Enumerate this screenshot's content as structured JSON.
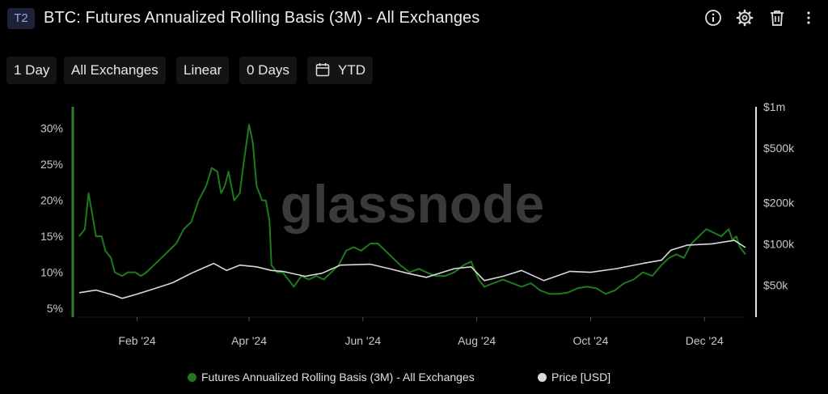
{
  "header": {
    "badge": "T2",
    "title": "BTC: Futures Annualized Rolling Basis (3M) - All Exchanges",
    "icons": [
      "info-icon",
      "gear-icon",
      "trash-icon",
      "more-vertical-icon"
    ]
  },
  "toolbar": {
    "resolution": "1 Day",
    "exchange": "All Exchanges",
    "scale": "Linear",
    "sma": "0 Days",
    "range": "YTD",
    "range_icon": "calendar-icon"
  },
  "watermark": "glassnode",
  "colors": {
    "background": "#000000",
    "basis": "#1e7a1e",
    "price": "#d9d9d9",
    "axis": "#e6e6e6"
  },
  "legend": {
    "basis": "Futures Annualized Rolling Basis (3M) - All Exchanges",
    "price": "Price [USD]"
  },
  "chart_data": {
    "type": "line",
    "x_ticks": [
      {
        "date": "2024-02-01",
        "label": "Feb '24"
      },
      {
        "date": "2024-04-01",
        "label": "Apr '24"
      },
      {
        "date": "2024-06-01",
        "label": "Jun '24"
      },
      {
        "date": "2024-08-01",
        "label": "Aug '24"
      },
      {
        "date": "2024-10-01",
        "label": "Oct '24"
      },
      {
        "date": "2024-12-01",
        "label": "Dec '24"
      }
    ],
    "x_range": [
      "2024-01-01",
      "2024-12-23"
    ],
    "y_left": {
      "ticks": [
        {
          "v": 0.3,
          "label": "30%"
        },
        {
          "v": 0.25,
          "label": "25%"
        },
        {
          "v": 0.2,
          "label": "20%"
        },
        {
          "v": 0.15,
          "label": "15%"
        },
        {
          "v": 0.1,
          "label": "10%"
        },
        {
          "v": 0.05,
          "label": "5%"
        }
      ],
      "range": [
        0.04,
        0.33
      ]
    },
    "y_right": {
      "scale": "log",
      "ticks": [
        {
          "v": 1000000,
          "label": "$1m"
        },
        {
          "v": 500000,
          "label": "$500k"
        },
        {
          "v": 200000,
          "label": "$200k"
        },
        {
          "v": 100000,
          "label": "$100k"
        },
        {
          "v": 50000,
          "label": "$50k"
        }
      ],
      "range": [
        30000,
        1000000
      ]
    },
    "series": [
      {
        "name": "Futures Annualized Rolling Basis (3M) - All Exchanges",
        "axis": "left",
        "points": [
          [
            "2024-01-01",
            0.15
          ],
          [
            "2024-01-04",
            0.16
          ],
          [
            "2024-01-06",
            0.21
          ],
          [
            "2024-01-08",
            0.18
          ],
          [
            "2024-01-10",
            0.15
          ],
          [
            "2024-01-13",
            0.15
          ],
          [
            "2024-01-15",
            0.13
          ],
          [
            "2024-01-18",
            0.12
          ],
          [
            "2024-01-20",
            0.1
          ],
          [
            "2024-01-24",
            0.095
          ],
          [
            "2024-01-27",
            0.1
          ],
          [
            "2024-01-31",
            0.1
          ],
          [
            "2024-02-03",
            0.095
          ],
          [
            "2024-02-06",
            0.1
          ],
          [
            "2024-02-10",
            0.11
          ],
          [
            "2024-02-14",
            0.12
          ],
          [
            "2024-02-18",
            0.13
          ],
          [
            "2024-02-22",
            0.14
          ],
          [
            "2024-02-26",
            0.16
          ],
          [
            "2024-03-01",
            0.17
          ],
          [
            "2024-03-05",
            0.2
          ],
          [
            "2024-03-09",
            0.22
          ],
          [
            "2024-03-12",
            0.245
          ],
          [
            "2024-03-15",
            0.24
          ],
          [
            "2024-03-17",
            0.21
          ],
          [
            "2024-03-19",
            0.22
          ],
          [
            "2024-03-21",
            0.24
          ],
          [
            "2024-03-24",
            0.2
          ],
          [
            "2024-03-27",
            0.21
          ],
          [
            "2024-03-29",
            0.25
          ],
          [
            "2024-04-01",
            0.305
          ],
          [
            "2024-04-03",
            0.28
          ],
          [
            "2024-04-05",
            0.22
          ],
          [
            "2024-04-08",
            0.2
          ],
          [
            "2024-04-10",
            0.2
          ],
          [
            "2024-04-12",
            0.17
          ],
          [
            "2024-04-13",
            0.11
          ],
          [
            "2024-04-16",
            0.1
          ],
          [
            "2024-04-19",
            0.1
          ],
          [
            "2024-04-22",
            0.09
          ],
          [
            "2024-04-25",
            0.08
          ],
          [
            "2024-04-29",
            0.095
          ],
          [
            "2024-05-03",
            0.09
          ],
          [
            "2024-05-07",
            0.095
          ],
          [
            "2024-05-11",
            0.09
          ],
          [
            "2024-05-15",
            0.1
          ],
          [
            "2024-05-19",
            0.11
          ],
          [
            "2024-05-23",
            0.13
          ],
          [
            "2024-05-27",
            0.135
          ],
          [
            "2024-05-31",
            0.13
          ],
          [
            "2024-06-05",
            0.14
          ],
          [
            "2024-06-09",
            0.14
          ],
          [
            "2024-06-13",
            0.13
          ],
          [
            "2024-06-17",
            0.12
          ],
          [
            "2024-06-21",
            0.11
          ],
          [
            "2024-06-26",
            0.1
          ],
          [
            "2024-07-01",
            0.105
          ],
          [
            "2024-07-05",
            0.1
          ],
          [
            "2024-07-10",
            0.095
          ],
          [
            "2024-07-15",
            0.095
          ],
          [
            "2024-07-20",
            0.1
          ],
          [
            "2024-07-25",
            0.11
          ],
          [
            "2024-07-29",
            0.115
          ],
          [
            "2024-08-02",
            0.09
          ],
          [
            "2024-08-05",
            0.08
          ],
          [
            "2024-08-10",
            0.085
          ],
          [
            "2024-08-15",
            0.09
          ],
          [
            "2024-08-20",
            0.085
          ],
          [
            "2024-08-25",
            0.08
          ],
          [
            "2024-08-30",
            0.085
          ],
          [
            "2024-09-04",
            0.075
          ],
          [
            "2024-09-09",
            0.07
          ],
          [
            "2024-09-14",
            0.07
          ],
          [
            "2024-09-19",
            0.072
          ],
          [
            "2024-09-24",
            0.078
          ],
          [
            "2024-09-29",
            0.08
          ],
          [
            "2024-10-04",
            0.078
          ],
          [
            "2024-10-09",
            0.07
          ],
          [
            "2024-10-14",
            0.075
          ],
          [
            "2024-10-19",
            0.085
          ],
          [
            "2024-10-24",
            0.09
          ],
          [
            "2024-10-29",
            0.1
          ],
          [
            "2024-11-03",
            0.095
          ],
          [
            "2024-11-08",
            0.11
          ],
          [
            "2024-11-12",
            0.12
          ],
          [
            "2024-11-16",
            0.125
          ],
          [
            "2024-11-20",
            0.12
          ],
          [
            "2024-11-24",
            0.14
          ],
          [
            "2024-11-28",
            0.15
          ],
          [
            "2024-12-02",
            0.16
          ],
          [
            "2024-12-06",
            0.155
          ],
          [
            "2024-12-10",
            0.15
          ],
          [
            "2024-12-14",
            0.16
          ],
          [
            "2024-12-16",
            0.145
          ],
          [
            "2024-12-18",
            0.15
          ],
          [
            "2024-12-20",
            0.135
          ],
          [
            "2024-12-23",
            0.125
          ]
        ]
      },
      {
        "name": "Price [USD]",
        "axis": "right",
        "points": [
          [
            "2024-01-01",
            44000
          ],
          [
            "2024-01-10",
            46000
          ],
          [
            "2024-01-20",
            42000
          ],
          [
            "2024-01-24",
            40000
          ],
          [
            "2024-02-01",
            43000
          ],
          [
            "2024-02-10",
            47000
          ],
          [
            "2024-02-20",
            52000
          ],
          [
            "2024-03-01",
            61000
          ],
          [
            "2024-03-13",
            72000
          ],
          [
            "2024-03-20",
            64000
          ],
          [
            "2024-03-27",
            70000
          ],
          [
            "2024-04-05",
            68000
          ],
          [
            "2024-04-13",
            64000
          ],
          [
            "2024-04-19",
            63000
          ],
          [
            "2024-05-01",
            58000
          ],
          [
            "2024-05-10",
            61000
          ],
          [
            "2024-05-20",
            70000
          ],
          [
            "2024-06-05",
            71000
          ],
          [
            "2024-06-15",
            66000
          ],
          [
            "2024-06-25",
            61000
          ],
          [
            "2024-07-05",
            57000
          ],
          [
            "2024-07-20",
            66000
          ],
          [
            "2024-07-29",
            68000
          ],
          [
            "2024-08-05",
            54000
          ],
          [
            "2024-08-15",
            58000
          ],
          [
            "2024-08-25",
            64000
          ],
          [
            "2024-09-06",
            54000
          ],
          [
            "2024-09-20",
            63000
          ],
          [
            "2024-10-01",
            62000
          ],
          [
            "2024-10-15",
            66000
          ],
          [
            "2024-10-29",
            72000
          ],
          [
            "2024-11-08",
            76000
          ],
          [
            "2024-11-13",
            90000
          ],
          [
            "2024-11-22",
            98000
          ],
          [
            "2024-12-05",
            100000
          ],
          [
            "2024-12-17",
            106000
          ],
          [
            "2024-12-23",
            94000
          ]
        ]
      }
    ],
    "grid": false,
    "legend_position": "bottom"
  }
}
